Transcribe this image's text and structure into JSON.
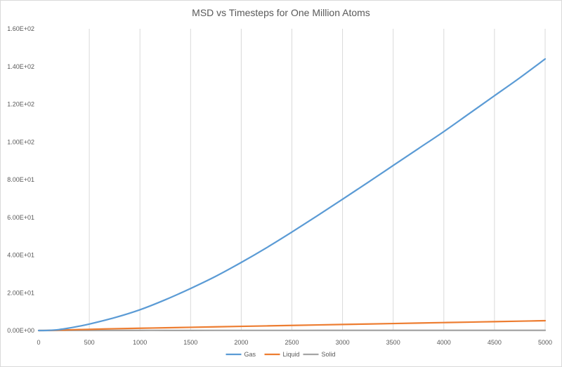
{
  "chart_data": {
    "type": "line",
    "title": "MSD vs Timesteps for One Million Atoms",
    "xlabel": "",
    "ylabel": "",
    "xlim": [
      0,
      5000
    ],
    "ylim": [
      0,
      160
    ],
    "x_ticks": [
      0,
      500,
      1000,
      1500,
      2000,
      2500,
      3000,
      3500,
      4000,
      4500,
      5000
    ],
    "x_tick_labels": [
      "0",
      "500",
      "1000",
      "1500",
      "2000",
      "2500",
      "3000",
      "3500",
      "4000",
      "4500",
      "5000"
    ],
    "y_ticks": [
      0,
      20,
      40,
      60,
      80,
      100,
      120,
      140,
      160
    ],
    "y_tick_labels": [
      "0.00E+00",
      "2.00E+01",
      "4.00E+01",
      "6.00E+01",
      "8.00E+01",
      "1.00E+02",
      "1.20E+02",
      "1.40E+02",
      "1.60E+02"
    ],
    "grid": "vertical",
    "legend_position": "bottom",
    "x": [
      0,
      100,
      200,
      300,
      400,
      500,
      750,
      1000,
      1250,
      1500,
      1750,
      2000,
      2250,
      2500,
      2750,
      3000,
      3250,
      3500,
      3750,
      4000,
      4250,
      4500,
      4750,
      5000
    ],
    "series": [
      {
        "name": "Gas",
        "color": "#5b9bd5",
        "values": [
          0,
          0.1,
          0.5,
          1.3,
          2.3,
          3.4,
          6.8,
          11,
          16.3,
          22.3,
          28.8,
          36.1,
          43.9,
          52.2,
          60.8,
          69.6,
          78.5,
          87.5,
          96.5,
          105.5,
          115,
          124.5,
          134,
          144
        ]
      },
      {
        "name": "Liquid",
        "color": "#ed7d31",
        "values": [
          0,
          0.05,
          0.2,
          0.35,
          0.5,
          0.6,
          0.95,
          1.2,
          1.45,
          1.7,
          1.95,
          2.2,
          2.45,
          2.7,
          2.95,
          3.2,
          3.45,
          3.7,
          3.95,
          4.2,
          4.45,
          4.7,
          4.95,
          5.2
        ]
      },
      {
        "name": "Solid",
        "color": "#a5a5a5",
        "values": [
          0,
          0.01,
          0.02,
          0.03,
          0.04,
          0.05,
          0.05,
          0.06,
          0.06,
          0.06,
          0.07,
          0.07,
          0.07,
          0.07,
          0.08,
          0.08,
          0.08,
          0.08,
          0.08,
          0.08,
          0.09,
          0.09,
          0.09,
          0.09
        ]
      }
    ]
  }
}
